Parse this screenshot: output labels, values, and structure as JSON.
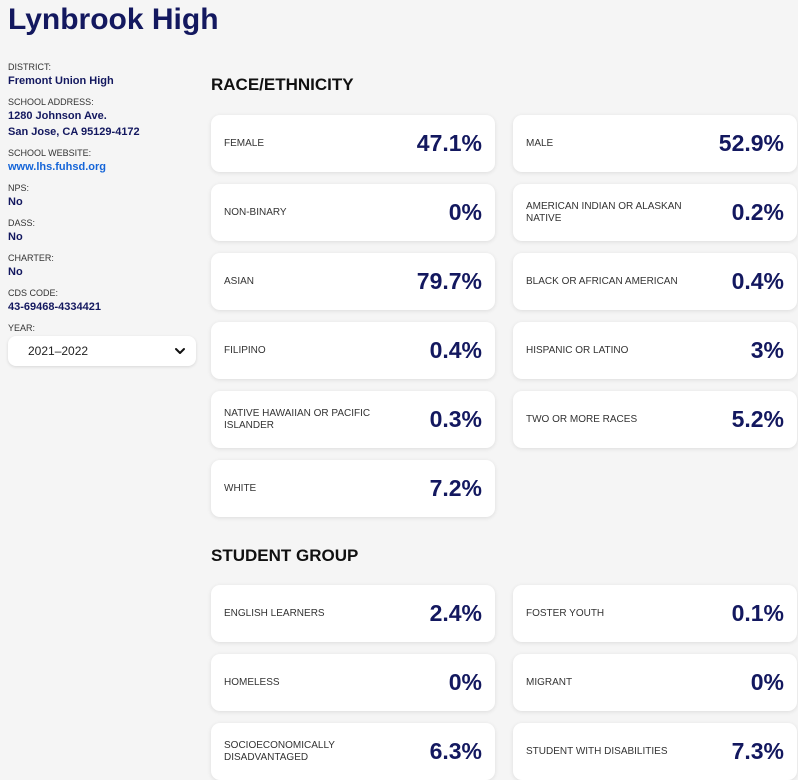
{
  "school": {
    "name": "Lynbrook High"
  },
  "sidebar": {
    "district_label": "DISTRICT:",
    "district_value": "Fremont Union High",
    "address_label": "SCHOOL ADDRESS:",
    "address_line1": "1280 Johnson Ave.",
    "address_line2": "San Jose, CA 95129-4172",
    "website_label": "SCHOOL WEBSITE:",
    "website_value": "www.lhs.fuhsd.org",
    "nps_label": "NPS:",
    "nps_value": "No",
    "dass_label": "DASS:",
    "dass_value": "No",
    "charter_label": "CHARTER:",
    "charter_value": "No",
    "cds_label": "CDS CODE:",
    "cds_value": "43-69468-4334421",
    "year_label": "YEAR:",
    "year_value": "2021–2022"
  },
  "race": {
    "title": "RACE/ETHNICITY",
    "items": [
      {
        "label": "FEMALE",
        "value": "47.1%"
      },
      {
        "label": "MALE",
        "value": "52.9%"
      },
      {
        "label": "NON-BINARY",
        "value": "0%"
      },
      {
        "label": "AMERICAN INDIAN OR ALASKAN NATIVE",
        "value": "0.2%"
      },
      {
        "label": "ASIAN",
        "value": "79.7%"
      },
      {
        "label": "BLACK OR AFRICAN AMERICAN",
        "value": "0.4%"
      },
      {
        "label": "FILIPINO",
        "value": "0.4%"
      },
      {
        "label": "HISPANIC OR LATINO",
        "value": "3%"
      },
      {
        "label": "NATIVE HAWAIIAN OR PACIFIC ISLANDER",
        "value": "0.3%"
      },
      {
        "label": "TWO OR MORE RACES",
        "value": "5.2%"
      },
      {
        "label": "WHITE",
        "value": "7.2%"
      }
    ]
  },
  "groups": {
    "title": "STUDENT GROUP",
    "items": [
      {
        "label": "ENGLISH LEARNERS",
        "value": "2.4%"
      },
      {
        "label": "FOSTER YOUTH",
        "value": "0.1%"
      },
      {
        "label": "HOMELESS",
        "value": "0%"
      },
      {
        "label": "MIGRANT",
        "value": "0%"
      },
      {
        "label": "SOCIOECONOMICALLY DISADVANTAGED",
        "value": "6.3%"
      },
      {
        "label": "STUDENT WITH DISABILITIES",
        "value": "7.3%"
      }
    ]
  },
  "colors": {
    "accent": "#13185f",
    "link": "#1565d8",
    "background": "#f5f5f5"
  }
}
